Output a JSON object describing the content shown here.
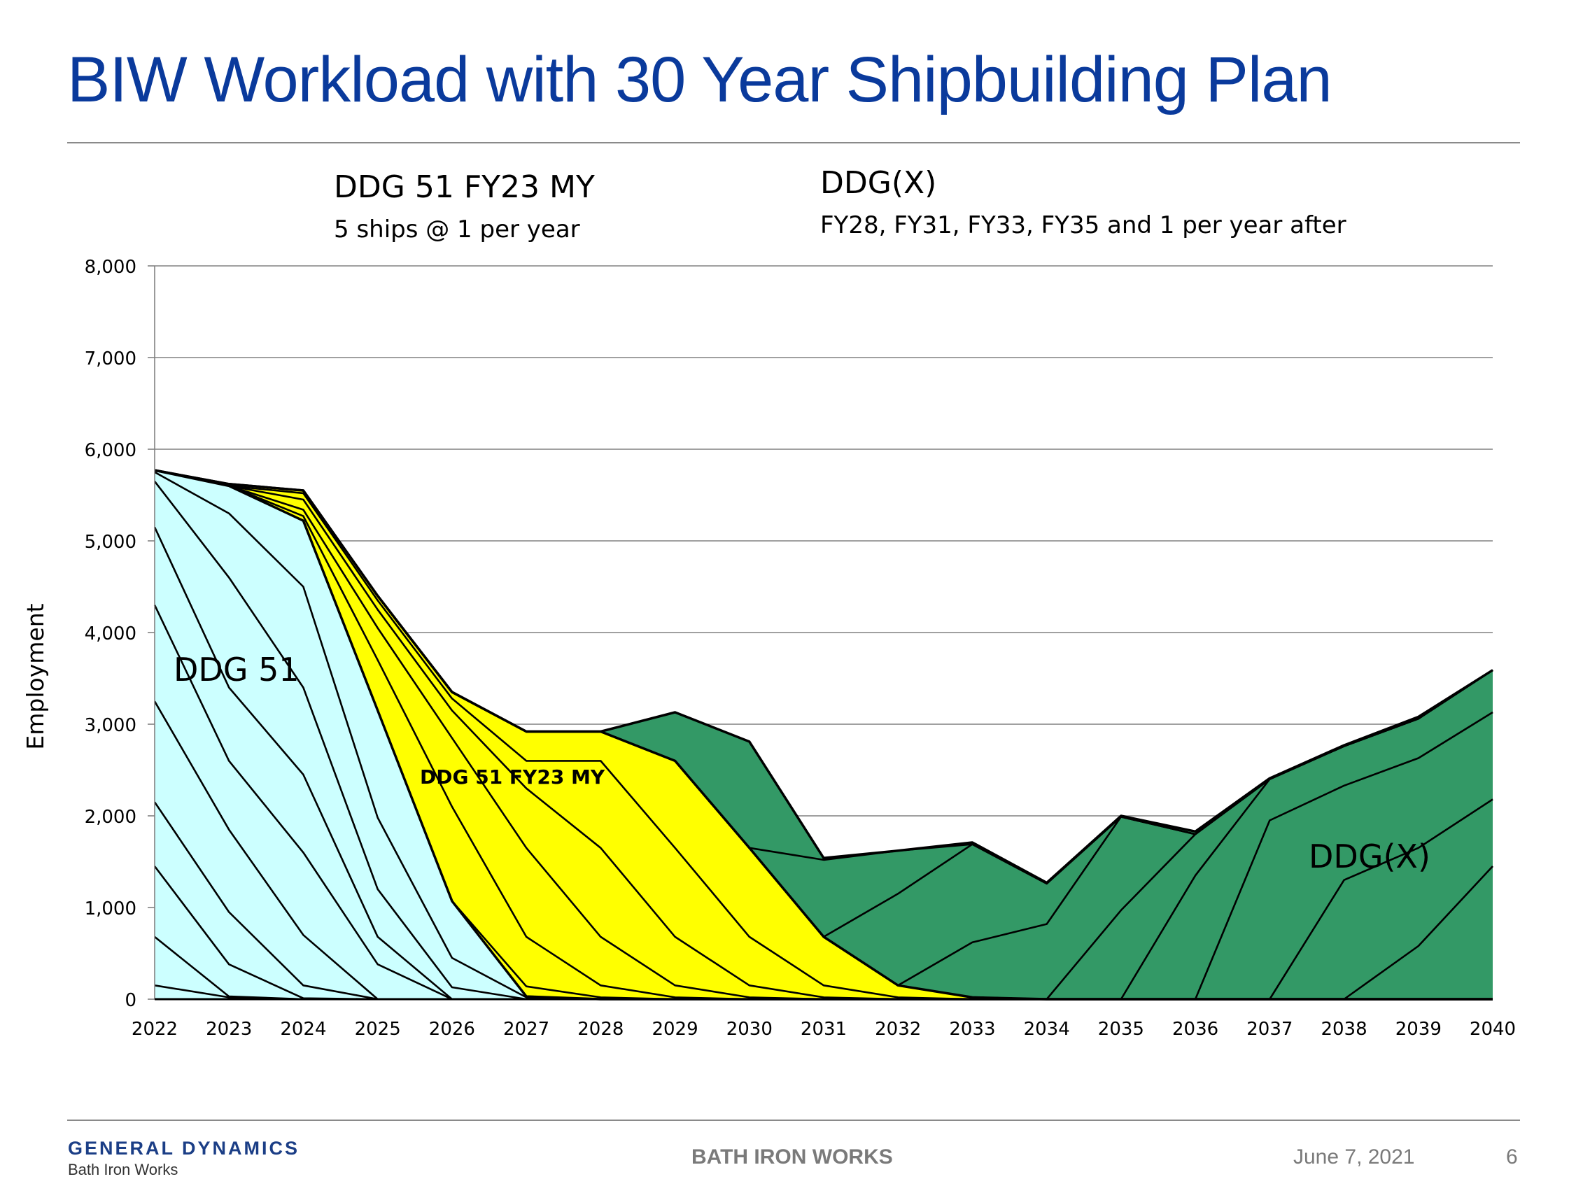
{
  "slide": {
    "title": "BIW Workload with 30 Year Shipbuilding Plan",
    "header_left_title": "DDG 51 FY23 MY",
    "header_left_sub": "5 ships @ 1 per year",
    "header_right_title": "DDG(X)",
    "header_right_sub": "FY28, FY31, FY33, FY35 and 1 per year after"
  },
  "footer": {
    "logo_main": "GENERAL DYNAMICS",
    "logo_sub": "Bath Iron Works",
    "center": "BATH IRON WORKS",
    "date": "June 7, 2021",
    "page": "6"
  },
  "chart_data": {
    "type": "area",
    "ylabel": "Employment",
    "ylim": [
      0,
      8000
    ],
    "y_ticks": [
      "0",
      "1,000",
      "2,000",
      "3,000",
      "4,000",
      "5,000",
      "6,000",
      "7,000",
      "8,000"
    ],
    "x": [
      "2022",
      "2023",
      "2024",
      "2025",
      "2026",
      "2027",
      "2028",
      "2029",
      "2030",
      "2031",
      "2032",
      "2033",
      "2034",
      "2035",
      "2036",
      "2037",
      "2038",
      "2039",
      "2040"
    ],
    "grid": true,
    "annotations": {
      "ddg51": "DDG 51",
      "fy23my": "DDG 51 FY23 MY",
      "ddgx": "DDG(X)"
    },
    "colors": {
      "ddg51": "#ccffff",
      "fy23my": "#ffff00",
      "ddgx": "#339966",
      "outline": "#000000",
      "grid": "#808080"
    },
    "groups": [
      {
        "key": "ddg51",
        "cumulative_lines": [
          [
            150,
            20,
            0,
            0,
            0,
            0,
            0,
            0,
            0,
            0,
            0,
            0,
            0,
            0,
            0,
            0,
            0,
            0,
            0
          ],
          [
            680,
            30,
            0,
            0,
            0,
            0,
            0,
            0,
            0,
            0,
            0,
            0,
            0,
            0,
            0,
            0,
            0,
            0,
            0
          ],
          [
            1450,
            380,
            10,
            0,
            0,
            0,
            0,
            0,
            0,
            0,
            0,
            0,
            0,
            0,
            0,
            0,
            0,
            0,
            0
          ],
          [
            2150,
            950,
            150,
            0,
            0,
            0,
            0,
            0,
            0,
            0,
            0,
            0,
            0,
            0,
            0,
            0,
            0,
            0,
            0
          ],
          [
            3250,
            1850,
            700,
            0,
            0,
            0,
            0,
            0,
            0,
            0,
            0,
            0,
            0,
            0,
            0,
            0,
            0,
            0,
            0
          ],
          [
            4300,
            2600,
            1600,
            380,
            0,
            0,
            0,
            0,
            0,
            0,
            0,
            0,
            0,
            0,
            0,
            0,
            0,
            0,
            0
          ],
          [
            5150,
            3400,
            2450,
            680,
            0,
            0,
            0,
            0,
            0,
            0,
            0,
            0,
            0,
            0,
            0,
            0,
            0,
            0,
            0
          ],
          [
            5650,
            4600,
            3400,
            1200,
            130,
            0,
            0,
            0,
            0,
            0,
            0,
            0,
            0,
            0,
            0,
            0,
            0,
            0,
            0
          ],
          [
            5750,
            5300,
            4500,
            1980,
            450,
            20,
            0,
            0,
            0,
            0,
            0,
            0,
            0,
            0,
            0,
            0,
            0,
            0,
            0
          ],
          [
            5770,
            5600,
            5220,
            3150,
            1070,
            30,
            0,
            0,
            0,
            0,
            0,
            0,
            0,
            0,
            0,
            0,
            0,
            0,
            0
          ]
        ]
      },
      {
        "key": "fy23my",
        "cumulative_lines": [
          [
            5770,
            5600,
            5220,
            3150,
            1070,
            140,
            20,
            0,
            0,
            0,
            0,
            0,
            0,
            0,
            0,
            0,
            0,
            0,
            0
          ],
          [
            5770,
            5600,
            5270,
            3700,
            2100,
            680,
            150,
            20,
            0,
            0,
            0,
            0,
            0,
            0,
            0,
            0,
            0,
            0,
            0
          ],
          [
            5770,
            5600,
            5340,
            4050,
            2850,
            1650,
            680,
            150,
            20,
            0,
            0,
            0,
            0,
            0,
            0,
            0,
            0,
            0,
            0
          ],
          [
            5770,
            5600,
            5450,
            4250,
            3150,
            2300,
            1650,
            680,
            150,
            20,
            0,
            0,
            0,
            0,
            0,
            0,
            0,
            0,
            0
          ],
          [
            5770,
            5600,
            5520,
            4350,
            3280,
            2600,
            2600,
            1650,
            680,
            150,
            20,
            0,
            0,
            0,
            0,
            0,
            0,
            0,
            0
          ],
          [
            5770,
            5620,
            5550,
            4400,
            3350,
            2920,
            2920,
            2600,
            1650,
            680,
            150,
            20,
            0,
            0,
            0,
            0,
            0,
            0,
            0
          ]
        ]
      },
      {
        "key": "ddgx",
        "cumulative_lines": [
          [
            5770,
            5620,
            5550,
            4400,
            3350,
            2920,
            2920,
            2600,
            1650,
            680,
            150,
            20,
            0,
            0,
            0,
            0,
            0,
            0,
            0
          ],
          [
            5770,
            5620,
            5550,
            4400,
            3350,
            2920,
            2920,
            2600,
            1650,
            680,
            150,
            20,
            0,
            0,
            0,
            0,
            0,
            0,
            0
          ],
          [
            5770,
            5620,
            5550,
            4400,
            3350,
            2920,
            2920,
            2600,
            1650,
            680,
            150,
            20,
            0,
            0,
            0,
            0,
            0,
            0,
            0
          ],
          [
            5770,
            5620,
            5550,
            4400,
            3350,
            2920,
            2920,
            2600,
            1650,
            680,
            150,
            20,
            0,
            0,
            0,
            0,
            0,
            0,
            0
          ],
          [
            5770,
            5620,
            5550,
            4400,
            3350,
            2920,
            2920,
            2600,
            1650,
            680,
            150,
            20,
            0,
            0,
            0,
            0,
            0,
            580,
            1450
          ],
          [
            5770,
            5620,
            5550,
            4400,
            3350,
            2920,
            2920,
            2600,
            1650,
            680,
            150,
            20,
            0,
            0,
            0,
            0,
            1300,
            1650,
            2180
          ],
          [
            5770,
            5620,
            5550,
            4400,
            3350,
            2920,
            2920,
            2600,
            1650,
            680,
            150,
            20,
            0,
            0,
            0,
            1950,
            2330,
            2630,
            3130
          ],
          [
            5770,
            5620,
            5550,
            4400,
            3350,
            2920,
            2920,
            2600,
            1650,
            680,
            150,
            20,
            0,
            0,
            1350,
            2400,
            2760,
            3060,
            3590
          ],
          [
            5770,
            5620,
            5550,
            4400,
            3350,
            2920,
            2920,
            2600,
            1650,
            680,
            150,
            20,
            0,
            970,
            1800,
            2400,
            2760,
            3060,
            3590
          ],
          [
            5770,
            5620,
            5550,
            4400,
            3350,
            2920,
            2920,
            2600,
            1650,
            680,
            150,
            620,
            820,
            1990,
            1800,
            2400,
            2760,
            3060,
            3590
          ],
          [
            5770,
            5620,
            5550,
            4400,
            3350,
            2920,
            2920,
            2600,
            1650,
            680,
            1150,
            1690,
            1260,
            1990,
            1800,
            2400,
            2760,
            3060,
            3590
          ],
          [
            5770,
            5620,
            5550,
            4400,
            3350,
            2920,
            2920,
            2600,
            1650,
            1520,
            1620,
            1690,
            1260,
            1990,
            1800,
            2400,
            2760,
            3060,
            3590
          ],
          [
            5770,
            5620,
            5550,
            4400,
            3350,
            2920,
            2920,
            3130,
            2810,
            1540,
            1620,
            1710,
            1270,
            2000,
            1830,
            2410,
            2770,
            3080,
            3590
          ]
        ]
      }
    ]
  }
}
